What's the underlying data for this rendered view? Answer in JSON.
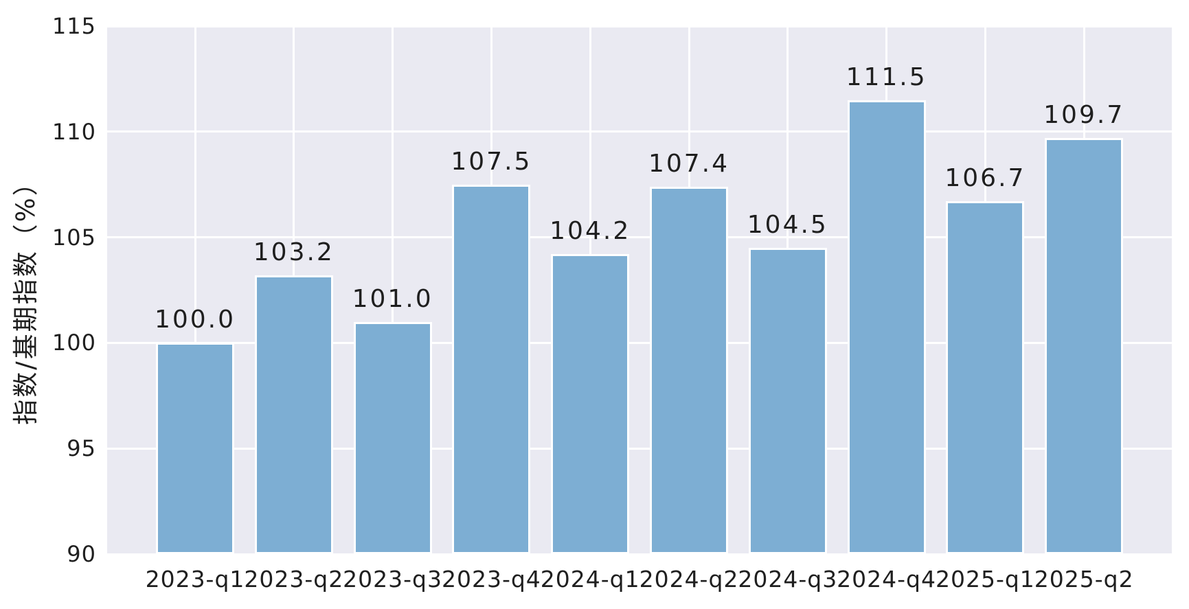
{
  "chart_data": {
    "type": "bar",
    "title": "",
    "xlabel": "",
    "ylabel": "指数/基期指数（%）",
    "categories": [
      "2023-q1",
      "2023-q2",
      "2023-q3",
      "2023-q4",
      "2024-q1",
      "2024-q2",
      "2024-q3",
      "2024-q4",
      "2025-q1",
      "2025-q2"
    ],
    "values": [
      100.0,
      103.2,
      101.0,
      107.5,
      104.2,
      107.4,
      104.5,
      111.5,
      106.7,
      109.7
    ],
    "value_label_decimals": 1,
    "ylim": [
      90,
      115
    ],
    "yticks": [
      90,
      95,
      100,
      105,
      110,
      115
    ],
    "grid": "both",
    "legend": "none",
    "style": "seaborn-darkgrid",
    "colors": {
      "bar_fill": "#7DAED3",
      "bar_edge": "#FFFFFF",
      "plot_background": "#EAEAF2",
      "gridline": "#FFFFFF",
      "text": "#1F1F1F",
      "figure_background": "#FFFFFF"
    }
  }
}
